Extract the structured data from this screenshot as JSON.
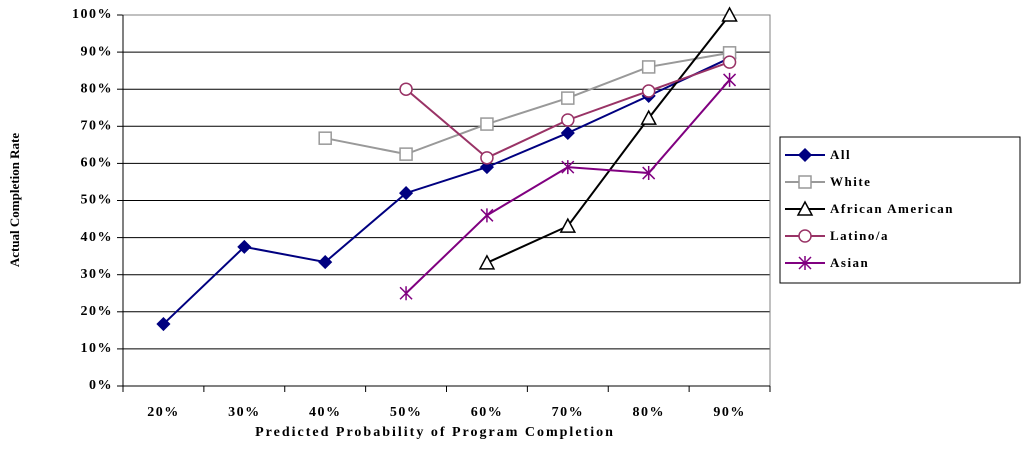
{
  "chart_data": {
    "type": "line",
    "x_label": "Predicted Probability of Program Completion",
    "y_label": "Actual Completion Rate",
    "categories": [
      "20%",
      "30%",
      "40%",
      "50%",
      "60%",
      "70%",
      "80%",
      "90%"
    ],
    "ylim": [
      0,
      100
    ],
    "yticks": [
      {
        "value": 0,
        "label": "0%"
      },
      {
        "value": 10,
        "label": "10%"
      },
      {
        "value": 20,
        "label": "20%"
      },
      {
        "value": 30,
        "label": "30%"
      },
      {
        "value": 40,
        "label": "40%"
      },
      {
        "value": 50,
        "label": "50%"
      },
      {
        "value": 60,
        "label": "60%"
      },
      {
        "value": 70,
        "label": "70%"
      },
      {
        "value": 80,
        "label": "80%"
      },
      {
        "value": 90,
        "label": "90%"
      },
      {
        "value": 100,
        "label": "100%"
      }
    ],
    "grid": true,
    "legend": "right",
    "series": [
      {
        "name": "All",
        "color": "#000080",
        "marker": "diamond",
        "values": [
          16.7,
          37.5,
          33.4,
          52,
          59,
          68.2,
          78.2,
          88.4
        ]
      },
      {
        "name": "White",
        "color": "#999999",
        "marker": "square",
        "values": [
          null,
          null,
          66.8,
          62.5,
          70.6,
          77.6,
          86,
          89.8
        ]
      },
      {
        "name": "African American",
        "color": "#000000",
        "marker": "triangle",
        "values": [
          null,
          null,
          null,
          null,
          33.2,
          43.1,
          72.2,
          100
        ]
      },
      {
        "name": "Latino/a",
        "color": "#993366",
        "marker": "circle",
        "values": [
          null,
          null,
          null,
          80,
          61.5,
          71.7,
          79.5,
          87.3
        ]
      },
      {
        "name": "Asian",
        "color": "#800080",
        "marker": "star",
        "values": [
          null,
          null,
          null,
          25,
          46,
          59,
          57.4,
          82.5
        ]
      }
    ]
  }
}
